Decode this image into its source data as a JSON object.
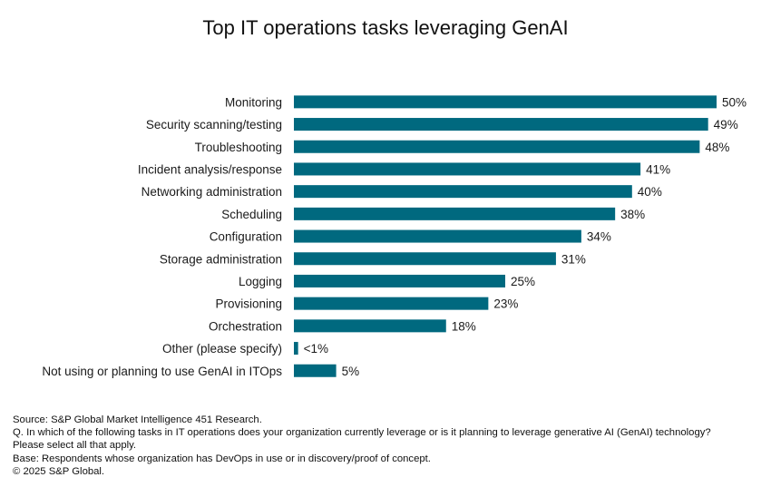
{
  "chart_data": {
    "type": "bar",
    "orientation": "horizontal",
    "title": "Top IT operations tasks leveraging GenAI",
    "categories": [
      "Monitoring",
      "Security scanning/testing",
      "Troubleshooting",
      "Incident analysis/response",
      "Networking administration",
      "Scheduling",
      "Configuration",
      "Storage administration",
      "Logging",
      "Provisioning",
      "Orchestration",
      "Other (please specify)",
      "Not using or planning to use GenAI in ITOps"
    ],
    "values": [
      50,
      49,
      48,
      41,
      40,
      38,
      34,
      31,
      25,
      23,
      18,
      0.5,
      5
    ],
    "value_labels": [
      "50%",
      "49%",
      "48%",
      "41%",
      "40%",
      "38%",
      "34%",
      "31%",
      "25%",
      "23%",
      "18%",
      "<1%",
      "5%"
    ],
    "xlim": [
      0,
      50
    ],
    "grid": false,
    "bar_color": "#00697f"
  },
  "notes": {
    "source": "Source: S&P Global Market Intelligence 451 Research.",
    "question": "Q. In which of the following tasks in IT operations does your organization currently leverage or is it planning to leverage generative AI (GenAI) technology? Please select all that apply.",
    "base": "Base: Respondents whose organization has DevOps in use or in discovery/proof of concept.",
    "copyright": "© 2025 S&P Global."
  }
}
